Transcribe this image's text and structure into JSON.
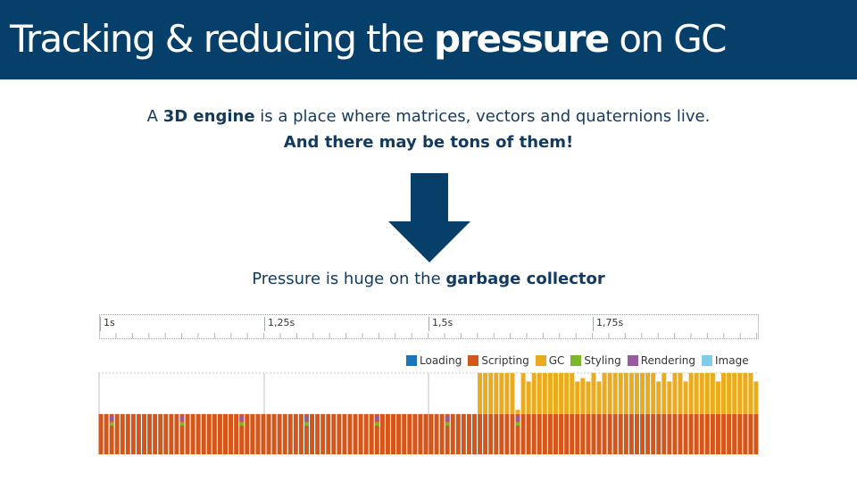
{
  "slide": {
    "title_part1": "Tracking & reducing the ",
    "title_bold": "pressure",
    "title_part2": " on GC",
    "line1_prefix": "A ",
    "line1_bold": "3D engine",
    "line1_suffix": " is a place where matrices, vectors and quaternions live.",
    "line2_bold": "And there may be tons of them!",
    "subtitle_prefix": "Pressure is huge on the ",
    "subtitle_bold": "garbage collector"
  },
  "timeline": {
    "labels": [
      "1s",
      "1,25s",
      "1,5s",
      "1,75s"
    ]
  },
  "colors": {
    "brand": "#073f6b",
    "loading": "#1b75bc",
    "scripting": "#d4561b",
    "gc": "#eaab1e",
    "styling": "#7ab829",
    "rendering": "#9a5b9e",
    "image": "#7dcdea"
  },
  "legend": [
    {
      "label": "Loading",
      "color": "#1b75bc"
    },
    {
      "label": "Scripting",
      "color": "#d4561b"
    },
    {
      "label": "GC",
      "color": "#eaab1e"
    },
    {
      "label": "Styling",
      "color": "#7ab829"
    },
    {
      "label": "Rendering",
      "color": "#9a5b9e"
    },
    {
      "label": "Image",
      "color": "#7dcdea"
    }
  ],
  "chart_data": {
    "type": "bar",
    "title": "",
    "xlabel": "",
    "ylabel": "",
    "x_range_seconds": [
      1.0,
      1.98
    ],
    "stacking": "stacked",
    "bar_count": 122,
    "series_order": [
      "Scripting",
      "GC"
    ],
    "scripting_level": 0.47,
    "gc_level_after_onset": 0.48,
    "gc_onset_bar": 70,
    "gc_dip_bars": [
      79,
      88,
      90,
      92,
      103,
      105,
      108,
      114,
      121
    ],
    "gc_dip_level": 0.38,
    "gc_low_bars": [
      89
    ],
    "gc_low_level": 0.42,
    "gc_mid_bar": 77,
    "gc_mid_level": 0.05,
    "markers_bar_indices": [
      2,
      15,
      26,
      38,
      51,
      64,
      77
    ],
    "notes": "Scripting dominates early frames; after ~1,55s GC work appears stacked above scripting."
  }
}
